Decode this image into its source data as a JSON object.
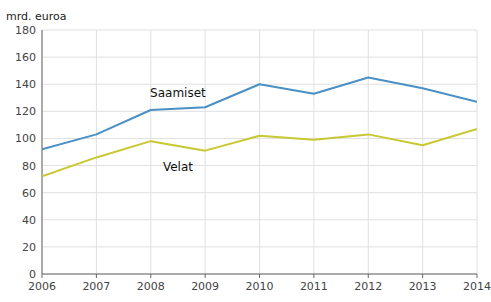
{
  "chart_data": {
    "type": "line",
    "y_label": "mrd. euroa",
    "x": [
      2006,
      2007,
      2008,
      2009,
      2010,
      2011,
      2012,
      2013,
      2014
    ],
    "xlim": [
      2006,
      2014
    ],
    "xticks": [
      2006,
      2007,
      2008,
      2009,
      2010,
      2011,
      2012,
      2013,
      2014
    ],
    "ylim": [
      0,
      180
    ],
    "yticks": [
      0,
      20,
      40,
      60,
      80,
      100,
      120,
      140,
      160,
      180
    ],
    "grid": true,
    "series": [
      {
        "name": "Saamiset",
        "color": "#4a90c4",
        "values": [
          92,
          103,
          121,
          123,
          140,
          133,
          145,
          137,
          127
        ]
      },
      {
        "name": "Velat",
        "color": "#c8c832",
        "values": [
          72,
          86,
          98,
          91,
          102,
          99,
          103,
          95,
          107
        ]
      }
    ]
  }
}
